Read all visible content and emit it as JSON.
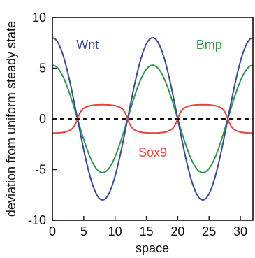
{
  "chart_data": {
    "type": "line",
    "title": "",
    "xlabel": "space",
    "ylabel": "deviation from uniform steady state",
    "xlim": [
      0,
      32
    ],
    "ylim": [
      -10,
      10
    ],
    "x_ticks": [
      0,
      5,
      10,
      15,
      20,
      25,
      30
    ],
    "y_ticks": [
      10,
      5,
      0,
      -5,
      -10
    ],
    "grid": false,
    "series": [
      {
        "name": "Wnt",
        "color": "#3a4a9c",
        "x": [
          0,
          0.5,
          1,
          1.5,
          2,
          2.5,
          3,
          3.5,
          4,
          4.5,
          5,
          5.5,
          6,
          6.5,
          7,
          7.5,
          8,
          8.5,
          9,
          9.5,
          10,
          10.5,
          11,
          11.5,
          12,
          12.5,
          13,
          13.5,
          14,
          14.5,
          15,
          15.5,
          16,
          16.5,
          17,
          17.5,
          18,
          18.5,
          19,
          19.5,
          20,
          20.5,
          21,
          21.5,
          22,
          22.5,
          23,
          23.5,
          24,
          24.5,
          25,
          25.5,
          26,
          26.5,
          27,
          27.5,
          28,
          28.5,
          29,
          29.5,
          30,
          30.5,
          31,
          31.5,
          32
        ],
        "y": [
          8,
          7.85,
          7.39,
          6.65,
          5.66,
          4.44,
          3.06,
          1.56,
          0,
          -1.56,
          -3.06,
          -4.44,
          -5.66,
          -6.65,
          -7.39,
          -7.85,
          -8,
          -7.85,
          -7.39,
          -6.65,
          -5.66,
          -4.44,
          -3.06,
          -1.56,
          0,
          1.56,
          3.06,
          4.44,
          5.66,
          6.65,
          7.39,
          7.85,
          8,
          7.85,
          7.39,
          6.65,
          5.66,
          4.44,
          3.06,
          1.56,
          0,
          -1.56,
          -3.06,
          -4.44,
          -5.66,
          -6.65,
          -7.39,
          -7.85,
          -8,
          -7.85,
          -7.39,
          -6.65,
          -5.66,
          -4.44,
          -3.06,
          -1.56,
          0,
          1.56,
          3.06,
          4.44,
          5.66,
          6.65,
          7.39,
          7.85,
          8
        ]
      },
      {
        "name": "Bmp",
        "color": "#2e9a4a",
        "x": [
          0,
          0.5,
          1,
          1.5,
          2,
          2.5,
          3,
          3.5,
          4,
          4.5,
          5,
          5.5,
          6,
          6.5,
          7,
          7.5,
          8,
          8.5,
          9,
          9.5,
          10,
          10.5,
          11,
          11.5,
          12,
          12.5,
          13,
          13.5,
          14,
          14.5,
          15,
          15.5,
          16,
          16.5,
          17,
          17.5,
          18,
          18.5,
          19,
          19.5,
          20,
          20.5,
          21,
          21.5,
          22,
          22.5,
          23,
          23.5,
          24,
          24.5,
          25,
          25.5,
          26,
          26.5,
          27,
          27.5,
          28,
          28.5,
          29,
          29.5,
          30,
          30.5,
          31,
          31.5,
          32
        ],
        "y": [
          5.3,
          5.2,
          4.9,
          4.41,
          3.75,
          2.94,
          2.03,
          1.03,
          0,
          -1.03,
          -2.03,
          -2.94,
          -3.75,
          -4.41,
          -4.9,
          -5.2,
          -5.3,
          -5.2,
          -4.9,
          -4.41,
          -3.75,
          -2.94,
          -2.03,
          -1.03,
          0,
          1.03,
          2.03,
          2.94,
          3.75,
          4.41,
          4.9,
          5.2,
          5.3,
          5.2,
          4.9,
          4.41,
          3.75,
          2.94,
          2.03,
          1.03,
          0,
          -1.03,
          -2.03,
          -2.94,
          -3.75,
          -4.41,
          -4.9,
          -5.2,
          -5.3,
          -5.2,
          -4.9,
          -4.41,
          -3.75,
          -2.94,
          -2.03,
          -1.03,
          0,
          1.03,
          2.03,
          2.94,
          3.75,
          4.41,
          4.9,
          5.2,
          5.3
        ]
      },
      {
        "name": "Sox9",
        "color": "#e8423a",
        "x": [
          0,
          0.5,
          1,
          1.5,
          2,
          2.5,
          3,
          3.25,
          3.5,
          3.75,
          4,
          4.25,
          4.5,
          4.75,
          5,
          5.5,
          6,
          7,
          8,
          9,
          10,
          10.5,
          11,
          11.25,
          11.5,
          11.75,
          12,
          12.25,
          12.5,
          12.75,
          13,
          13.5,
          14,
          15,
          16,
          17,
          18,
          18.5,
          19,
          19.25,
          19.5,
          19.75,
          20,
          20.25,
          20.5,
          20.75,
          21,
          21.5,
          22,
          23,
          24,
          25,
          26,
          26.5,
          27,
          27.25,
          27.5,
          27.75,
          28,
          28.25,
          28.5,
          28.75,
          29,
          29.5,
          30,
          31,
          32
        ],
        "y": [
          -1.4,
          -1.4,
          -1.38,
          -1.35,
          -1.3,
          -1.2,
          -1.05,
          -0.9,
          -0.7,
          -0.4,
          0,
          0.4,
          0.7,
          0.9,
          1.05,
          1.2,
          1.3,
          1.38,
          1.4,
          1.38,
          1.3,
          1.2,
          1.05,
          0.9,
          0.7,
          0.4,
          0,
          -0.4,
          -0.7,
          -0.9,
          -1.05,
          -1.2,
          -1.3,
          -1.38,
          -1.4,
          -1.38,
          -1.3,
          -1.2,
          -1.05,
          -0.9,
          -0.7,
          -0.4,
          0,
          0.4,
          0.7,
          0.9,
          1.05,
          1.2,
          1.3,
          1.38,
          1.4,
          1.38,
          1.3,
          1.2,
          1.05,
          0.9,
          0.7,
          0.4,
          0,
          -0.4,
          -0.7,
          -0.9,
          -1.05,
          -1.2,
          -1.3,
          -1.38,
          -1.4
        ]
      }
    ],
    "reference_line": {
      "y": 0,
      "style": "dashed",
      "color": "#111111"
    },
    "series_labels": [
      {
        "text": "Wnt",
        "color": "#3a4a9c",
        "at_x": 5.6,
        "at_y": 7.3
      },
      {
        "text": "Bmp",
        "color": "#2e9a4a",
        "at_x": 25.0,
        "at_y": 7.3
      },
      {
        "text": "Sox9",
        "color": "#e8423a",
        "at_x": 16.0,
        "at_y": -3.3
      }
    ]
  }
}
